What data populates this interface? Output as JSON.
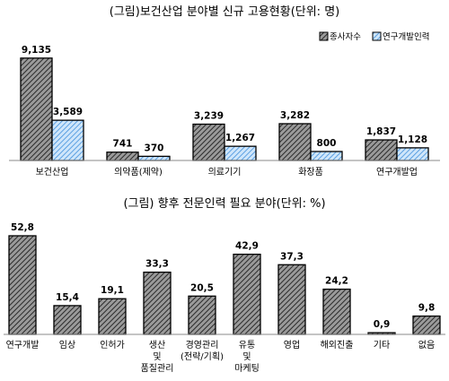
{
  "chart_data": [
    {
      "type": "bar",
      "title": "(그림)보건산업 분야별 신규 고용현황(단위: 명)",
      "categories": [
        "보건산업",
        "의약품(제약)",
        "의료기기",
        "화장품",
        "연구개발업"
      ],
      "series": [
        {
          "name": "종사자수",
          "values": [
            9135,
            741,
            3239,
            3282,
            1837
          ],
          "labels": [
            "9,135",
            "741",
            "3,239",
            "3,282",
            "1,837"
          ],
          "color": "#000000",
          "pattern": "hatched"
        },
        {
          "name": "연구개발인력",
          "values": [
            3589,
            370,
            1267,
            800,
            1128
          ],
          "labels": [
            "3,589",
            "370",
            "1,267",
            "800",
            "1,128"
          ],
          "color": "#4a90d9",
          "pattern": "hatched"
        }
      ],
      "legend": "top-right",
      "grid": false,
      "ylim": [
        0,
        10000
      ]
    },
    {
      "type": "bar",
      "title": "(그림) 향후 전문인력 필요 분야(단위: %)",
      "categories": [
        "연구개발",
        "임상",
        "인허가",
        "생산\n및\n품질관리",
        "경영관리\n(전략/기획)",
        "유통\n및\n마케팅",
        "영업",
        "해외진출",
        "기타",
        "없음"
      ],
      "values": [
        52.8,
        15.4,
        19.1,
        33.3,
        20.5,
        42.9,
        37.3,
        24.2,
        0.9,
        9.8
      ],
      "labels": [
        "52,8",
        "15,4",
        "19,1",
        "33,3",
        "20,5",
        "42,9",
        "37,3",
        "24,2",
        "0,9",
        "9,8"
      ],
      "color": "#000000",
      "pattern": "hatched",
      "grid": false,
      "ylim": [
        0,
        60
      ]
    }
  ]
}
